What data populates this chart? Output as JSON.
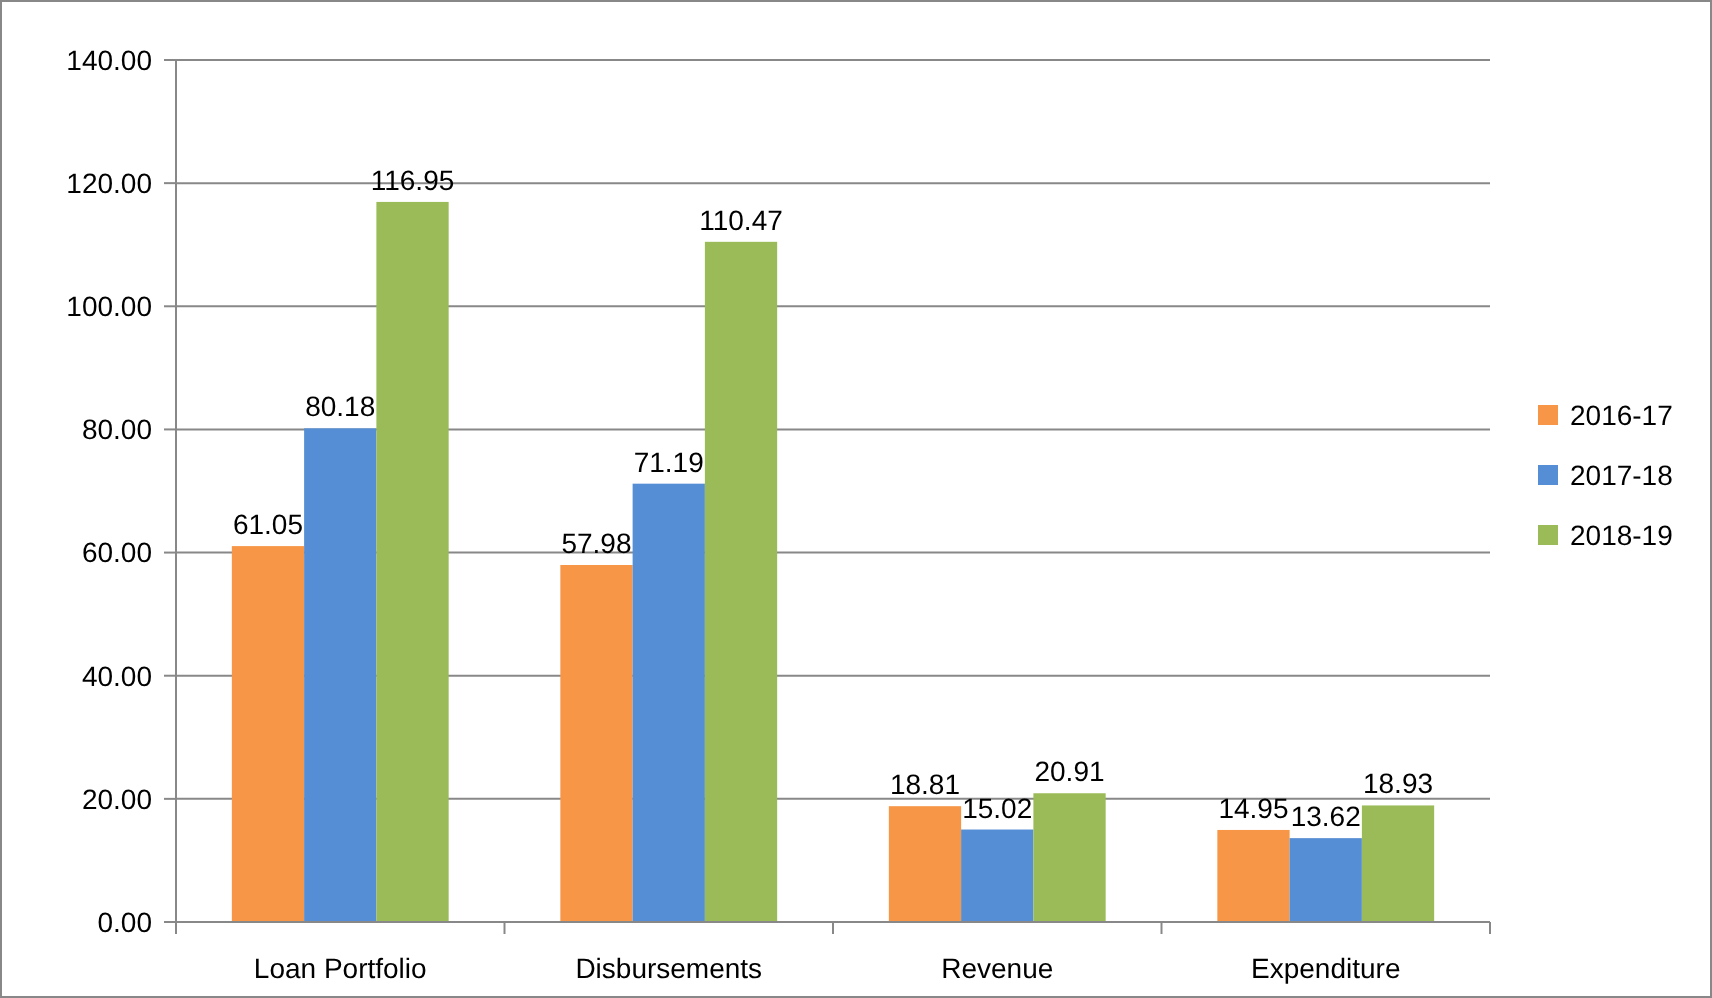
{
  "chart_data": {
    "type": "bar",
    "categories": [
      "Loan Portfolio",
      "Disbursements",
      "Revenue",
      "Expenditure"
    ],
    "series": [
      {
        "name": "2016-17",
        "color": "#f79646",
        "values": [
          61.05,
          57.98,
          18.81,
          14.95
        ]
      },
      {
        "name": "2017-18",
        "color": "#558ed5",
        "values": [
          80.18,
          71.19,
          15.02,
          13.62
        ]
      },
      {
        "name": "2018-19",
        "color": "#9bbb59",
        "values": [
          116.95,
          110.47,
          20.91,
          18.93
        ]
      }
    ],
    "ylim": [
      0,
      140
    ],
    "yticks": [
      {
        "value": 0,
        "label": "0.00"
      },
      {
        "value": 20,
        "label": "20.00"
      },
      {
        "value": 40,
        "label": "40.00"
      },
      {
        "value": 60,
        "label": "60.00"
      },
      {
        "value": 80,
        "label": "80.00"
      },
      {
        "value": 100,
        "label": "100.00"
      },
      {
        "value": 120,
        "label": "120.00"
      },
      {
        "value": 140,
        "label": "140.00"
      }
    ],
    "grid": "y",
    "legend": "right",
    "data_labels": true
  }
}
